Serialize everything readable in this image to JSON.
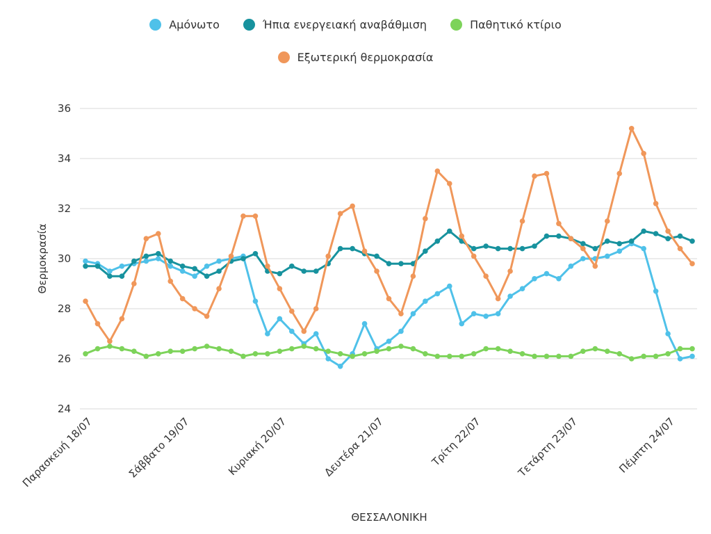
{
  "colors": {
    "amonoto": "#4fc1e9",
    "ipia": "#17929e",
    "pathitiko": "#7dd35a",
    "exoteriki": "#f0975a",
    "grid": "#d9d9d9",
    "text": "#333333"
  },
  "legend": [
    {
      "name": "Αμόνωτο",
      "color_key": "amonoto"
    },
    {
      "name": "Ήπια ενεργειακή αναβάθμιση",
      "color_key": "ipia"
    },
    {
      "name": "Παθητικό κτίριο",
      "color_key": "pathitiko"
    },
    {
      "name": "Εξωτερική θερμοκρασία",
      "color_key": "exoteriki"
    }
  ],
  "chart_data": {
    "type": "line",
    "title": "",
    "xlabel": "ΘΕΣΣΑΛΟΝΙΚΗ",
    "ylabel": "Θερμοκρασία",
    "ylim": [
      24,
      36
    ],
    "yticks": [
      24,
      26,
      28,
      30,
      32,
      34,
      36
    ],
    "grid": true,
    "legend_position": "top",
    "x_tick_labels": [
      {
        "label": "Παρασκευή 18/07",
        "index": 0
      },
      {
        "label": "Σάββατο 19/07",
        "index": 8
      },
      {
        "label": "Κυριακή 20/07",
        "index": 16
      },
      {
        "label": "Δευτέρα 21/07",
        "index": 24
      },
      {
        "label": "Τρίτη 22/07",
        "index": 32
      },
      {
        "label": "Τετάρτη 23/07",
        "index": 40
      },
      {
        "label": "Πέμπτη 24/07",
        "index": 48
      }
    ],
    "series": [
      {
        "name": "Αμόνωτο",
        "color_key": "amonoto",
        "values": [
          29.9,
          29.8,
          29.5,
          29.7,
          29.8,
          29.9,
          30.0,
          29.7,
          29.5,
          29.3,
          29.7,
          29.9,
          30.0,
          30.1,
          28.3,
          27.0,
          27.6,
          27.1,
          26.6,
          27.0,
          26.0,
          25.7,
          26.2,
          27.4,
          26.4,
          26.7,
          27.1,
          27.8,
          28.3,
          28.6,
          28.9,
          27.4,
          27.8,
          27.7,
          27.8,
          28.5,
          28.8,
          29.2,
          29.4,
          29.2,
          29.7,
          30.0,
          30.0,
          30.1,
          30.3,
          30.6,
          30.4,
          28.7,
          27.0,
          26.0,
          26.1
        ]
      },
      {
        "name": "Ήπια ενεργειακή αναβάθμιση",
        "color_key": "ipia",
        "values": [
          29.7,
          29.7,
          29.3,
          29.3,
          29.9,
          30.1,
          30.2,
          29.9,
          29.7,
          29.6,
          29.3,
          29.5,
          29.9,
          30.0,
          30.2,
          29.5,
          29.4,
          29.7,
          29.5,
          29.5,
          29.8,
          30.4,
          30.4,
          30.2,
          30.1,
          29.8,
          29.8,
          29.8,
          30.3,
          30.7,
          31.1,
          30.7,
          30.4,
          30.5,
          30.4,
          30.4,
          30.4,
          30.5,
          30.9,
          30.9,
          30.8,
          30.6,
          30.4,
          30.7,
          30.6,
          30.7,
          31.1,
          31.0,
          30.8,
          30.9,
          30.7
        ]
      },
      {
        "name": "Παθητικό κτίριο",
        "color_key": "pathitiko",
        "values": [
          26.2,
          26.4,
          26.5,
          26.4,
          26.3,
          26.1,
          26.2,
          26.3,
          26.3,
          26.4,
          26.5,
          26.4,
          26.3,
          26.1,
          26.2,
          26.2,
          26.3,
          26.4,
          26.5,
          26.4,
          26.3,
          26.2,
          26.1,
          26.2,
          26.3,
          26.4,
          26.5,
          26.4,
          26.2,
          26.1,
          26.1,
          26.1,
          26.2,
          26.4,
          26.4,
          26.3,
          26.2,
          26.1,
          26.1,
          26.1,
          26.1,
          26.3,
          26.4,
          26.3,
          26.2,
          26.0,
          26.1,
          26.1,
          26.2,
          26.4,
          26.4
        ]
      },
      {
        "name": "Εξωτερική θερμοκρασία",
        "color_key": "exoteriki",
        "values": [
          28.3,
          27.4,
          26.7,
          27.6,
          29.0,
          30.8,
          31.0,
          29.1,
          28.4,
          28.0,
          27.7,
          28.8,
          30.1,
          31.7,
          31.7,
          29.7,
          28.8,
          27.9,
          27.1,
          28.0,
          30.1,
          31.8,
          32.1,
          30.3,
          29.5,
          28.4,
          27.8,
          29.3,
          31.6,
          33.5,
          33.0,
          30.9,
          30.1,
          29.3,
          28.4,
          29.5,
          31.5,
          33.3,
          33.4,
          31.4,
          30.8,
          30.4,
          29.7,
          31.5,
          33.4,
          35.2,
          34.2,
          32.2,
          31.1,
          30.4,
          29.8
        ]
      }
    ]
  }
}
